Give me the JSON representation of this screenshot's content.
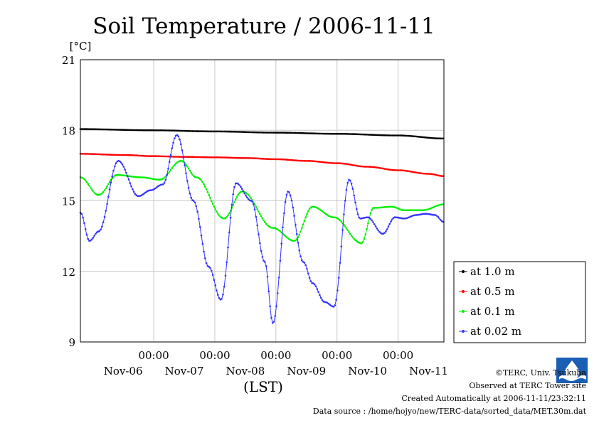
{
  "chart_data": {
    "type": "line",
    "title": "Soil Temperature / 2006-11-11",
    "yunit": "[°C]",
    "xlabel": "(LST)",
    "ylim": [
      9,
      21
    ],
    "yticks": [
      9,
      12,
      15,
      18,
      21
    ],
    "xlim": [
      -0.2,
      5.75
    ],
    "xtick_times": [
      "00:00",
      "00:00",
      "00:00",
      "00:00",
      "00:00"
    ],
    "xtick_time_pos": [
      1,
      2,
      3,
      4,
      5
    ],
    "xtick_dates": [
      "Nov-06",
      "Nov-07",
      "Nov-08",
      "Nov-09",
      "Nov-10",
      "Nov-11"
    ],
    "xtick_date_pos": [
      0.5,
      1.5,
      2.5,
      3.5,
      4.5,
      5.5
    ],
    "grid": true,
    "legend_position": "right",
    "series": [
      {
        "name": "at 1.0 m",
        "color": "#000000",
        "x": [
          -0.2,
          1,
          2,
          3,
          4,
          5,
          5.75
        ],
        "y": [
          18.05,
          18.0,
          17.95,
          17.9,
          17.85,
          17.78,
          17.65
        ]
      },
      {
        "name": "at 0.5 m",
        "color": "#ff0000",
        "x": [
          -0.2,
          0.5,
          1,
          1.5,
          2,
          2.5,
          3,
          3.5,
          4,
          4.5,
          5,
          5.5,
          5.75
        ],
        "y": [
          17.0,
          16.95,
          16.9,
          16.87,
          16.85,
          16.82,
          16.77,
          16.7,
          16.6,
          16.45,
          16.3,
          16.15,
          16.05
        ]
      },
      {
        "name": "at 0.1 m",
        "color": "#00ee00",
        "x": [
          -0.2,
          0.1,
          0.4,
          0.8,
          1.1,
          1.45,
          1.7,
          2.15,
          2.45,
          2.95,
          3.3,
          3.6,
          3.95,
          4.4,
          4.6,
          4.9,
          5.1,
          5.4,
          5.75
        ],
        "y": [
          16.0,
          15.25,
          16.1,
          16.0,
          15.9,
          16.7,
          16.0,
          14.25,
          15.4,
          13.85,
          13.3,
          14.75,
          14.3,
          13.2,
          14.7,
          14.75,
          14.6,
          14.6,
          14.85
        ]
      },
      {
        "name": "at 0.02 m",
        "color": "#3333ff",
        "x": [
          -0.2,
          -0.05,
          0.1,
          0.42,
          0.75,
          0.95,
          1.15,
          1.38,
          1.65,
          1.9,
          2.1,
          2.35,
          2.6,
          2.82,
          2.95,
          3.2,
          3.45,
          3.6,
          3.8,
          3.95,
          4.2,
          4.38,
          4.5,
          4.75,
          4.95,
          5.1,
          5.3,
          5.45,
          5.6,
          5.75
        ],
        "y": [
          14.5,
          13.3,
          13.7,
          16.7,
          15.2,
          15.45,
          15.7,
          17.8,
          15.0,
          12.2,
          10.8,
          15.75,
          15.0,
          12.4,
          9.8,
          15.4,
          12.4,
          11.5,
          10.7,
          10.5,
          15.9,
          14.25,
          14.3,
          13.6,
          14.3,
          14.25,
          14.4,
          14.45,
          14.4,
          14.1
        ]
      }
    ]
  },
  "credits": {
    "copyright": "©TERC, Univ. Tsukuba",
    "observed": "Observed at TERC Tower site",
    "created": "Created Automatically at 2006-11-11/23:32:11",
    "source": "Data source : /home/hojyo/new/TERC-data/sorted_data/MET.30m.dat",
    "logo_text": "TERC"
  }
}
